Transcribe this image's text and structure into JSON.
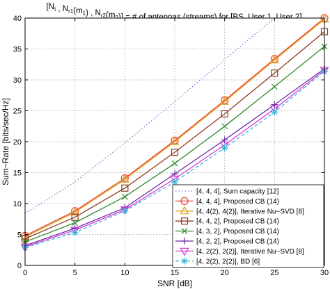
{
  "chart_data": {
    "type": "line",
    "title": "[N_t , N_r1(m_1) , N_r2(m_2)] = # of antennas (streams) for [BS, User 1, User 2]",
    "xlabel": "SNR [dB]",
    "ylabel": "Sum−Rate [bits/sec/Hz]",
    "xlim": [
      0,
      30
    ],
    "ylim": [
      0,
      40
    ],
    "x_ticks": [
      0,
      5,
      10,
      15,
      20,
      25,
      30
    ],
    "y_ticks": [
      0,
      5,
      10,
      15,
      20,
      25,
      30,
      35,
      40
    ],
    "grid": true,
    "legend_position": "bottom-right",
    "x": [
      0,
      5,
      10,
      15,
      20,
      25,
      30
    ],
    "series": [
      {
        "name": "[4, 4, 4], Sum capacity [12]",
        "values": [
          8.4,
          13.5,
          19.8,
          26.5,
          33.3,
          40.0,
          null
        ],
        "color": "#7b7bd6",
        "marker": "none",
        "dash": "dotted"
      },
      {
        "name": "[4, 4, 4], Proposed CB (14)",
        "values": [
          4.8,
          8.8,
          14.1,
          20.2,
          26.7,
          33.4,
          40.0
        ],
        "color": "#e8412a",
        "marker": "circle",
        "dash": "solid"
      },
      {
        "name": "[4, 4(2), 4(2)], Iterative Nu−SVD [8]",
        "values": [
          4.6,
          8.6,
          13.9,
          20.0,
          26.5,
          33.2,
          39.8
        ],
        "color": "#e0a11e",
        "marker": "triangle",
        "dash": "solid"
      },
      {
        "name": "[4, 4, 2], Proposed CB (14)",
        "values": [
          4.3,
          7.8,
          12.5,
          18.3,
          24.5,
          31.1,
          37.8
        ],
        "color": "#8b3a1c",
        "marker": "square",
        "dash": "solid"
      },
      {
        "name": "[4, 3, 2], Proposed CB (14)",
        "values": [
          3.8,
          6.9,
          11.1,
          16.5,
          22.5,
          28.9,
          35.4
        ],
        "color": "#2e8b2e",
        "marker": "x",
        "dash": "solid"
      },
      {
        "name": "[4, 2, 2], Proposed CB (14)",
        "values": [
          3.2,
          6.0,
          9.3,
          14.8,
          20.3,
          26.0,
          31.8
        ],
        "color": "#6b2fa8",
        "marker": "plus",
        "dash": "solid"
      },
      {
        "name": "[4, 2(2), 2(2)], Iterative Nu−SVD [8]",
        "values": [
          3.0,
          5.7,
          9.0,
          14.0,
          19.5,
          25.3,
          31.6
        ],
        "color": "#d63ad6",
        "marker": "triangle-down",
        "dash": "solid"
      },
      {
        "name": "[4, 2(2), 2(2)], BD [6]",
        "values": [
          2.9,
          5.3,
          8.8,
          13.5,
          19.0,
          24.8,
          31.4
        ],
        "color": "#3ab6d6",
        "marker": "asterisk",
        "dash": "dashed"
      }
    ]
  }
}
